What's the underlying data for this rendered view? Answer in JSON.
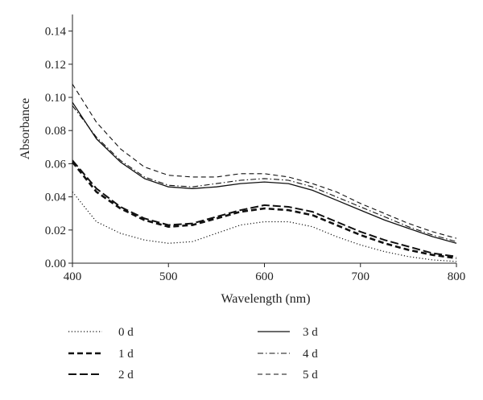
{
  "chart_data": {
    "type": "line",
    "title": "",
    "xlabel": "Wavelength (nm)",
    "ylabel": "Absorbance",
    "xlim": [
      400,
      800
    ],
    "ylim": [
      0,
      0.15
    ],
    "xticks": [
      400,
      500,
      600,
      700,
      800
    ],
    "xtick_labels": [
      "400",
      "500",
      "600",
      "700",
      "800"
    ],
    "yticks": [
      0,
      0.02,
      0.04,
      0.06,
      0.08,
      0.1,
      0.12,
      0.14
    ],
    "ytick_labels": [
      "0.00",
      "0.02",
      "0.04",
      "0.06",
      "0.08",
      "0.10",
      "0.12",
      "0.14"
    ],
    "grid": false,
    "legend_position": "bottom",
    "x": [
      400,
      425,
      450,
      475,
      500,
      525,
      550,
      575,
      600,
      625,
      650,
      675,
      700,
      725,
      750,
      775,
      800
    ],
    "series": [
      {
        "name": "0 d",
        "style": "dotted",
        "values": [
          0.043,
          0.025,
          0.018,
          0.014,
          0.012,
          0.013,
          0.018,
          0.023,
          0.025,
          0.025,
          0.022,
          0.016,
          0.011,
          0.007,
          0.004,
          0.002,
          0.001
        ]
      },
      {
        "name": "1 d",
        "style": "dash-thick",
        "values": [
          0.061,
          0.043,
          0.033,
          0.026,
          0.022,
          0.023,
          0.027,
          0.031,
          0.033,
          0.032,
          0.029,
          0.023,
          0.017,
          0.012,
          0.008,
          0.005,
          0.003
        ]
      },
      {
        "name": "2 d",
        "style": "dash-long",
        "values": [
          0.062,
          0.045,
          0.034,
          0.027,
          0.023,
          0.024,
          0.028,
          0.032,
          0.035,
          0.034,
          0.031,
          0.025,
          0.019,
          0.014,
          0.01,
          0.006,
          0.004
        ]
      },
      {
        "name": "3 d",
        "style": "solid",
        "values": [
          0.097,
          0.075,
          0.061,
          0.051,
          0.046,
          0.045,
          0.046,
          0.048,
          0.049,
          0.048,
          0.044,
          0.038,
          0.032,
          0.026,
          0.021,
          0.016,
          0.012
        ]
      },
      {
        "name": "4 d",
        "style": "dash-dot",
        "values": [
          0.095,
          0.076,
          0.062,
          0.052,
          0.047,
          0.046,
          0.048,
          0.05,
          0.051,
          0.05,
          0.046,
          0.04,
          0.034,
          0.028,
          0.022,
          0.017,
          0.013
        ]
      },
      {
        "name": "5 d",
        "style": "dash-thin",
        "values": [
          0.108,
          0.085,
          0.069,
          0.058,
          0.053,
          0.052,
          0.052,
          0.054,
          0.054,
          0.052,
          0.048,
          0.043,
          0.036,
          0.03,
          0.024,
          0.019,
          0.015
        ]
      }
    ]
  }
}
